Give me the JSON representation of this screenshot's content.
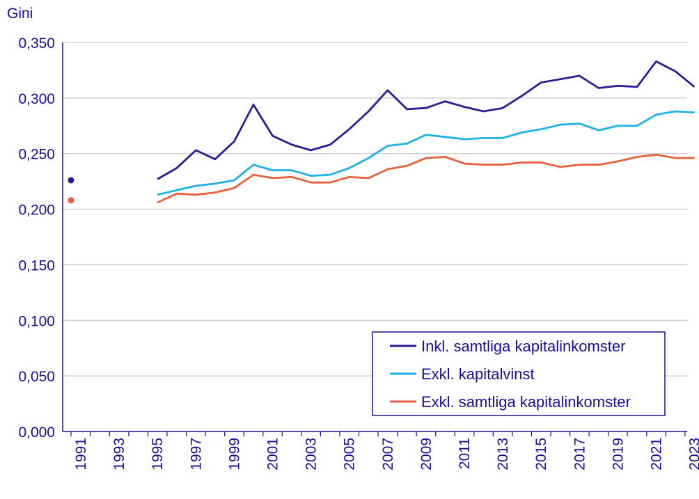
{
  "chart_data": {
    "type": "line",
    "title": "",
    "ylabel": "Gini",
    "xlabel": "",
    "ylim": [
      0,
      0.35
    ],
    "xlim": [
      1991,
      2023
    ],
    "yticks": [
      "0,000",
      "0,050",
      "0,100",
      "0,150",
      "0,200",
      "0,250",
      "0,300",
      "0,350"
    ],
    "ytick_values": [
      0,
      0.05,
      0.1,
      0.15,
      0.2,
      0.25,
      0.3,
      0.35
    ],
    "xticks": [
      "1991",
      "1993",
      "1995",
      "1997",
      "1999",
      "2001",
      "2003",
      "2005",
      "2007",
      "2009",
      "2011",
      "2013",
      "2015",
      "2017",
      "2019",
      "2021",
      "2023"
    ],
    "xtick_values": [
      1991,
      1993,
      1995,
      1997,
      1999,
      2001,
      2003,
      2005,
      2007,
      2009,
      2011,
      2013,
      2015,
      2017,
      2019,
      2021,
      2023
    ],
    "x": [
      1995,
      1996,
      1997,
      1998,
      1999,
      2000,
      2001,
      2002,
      2003,
      2004,
      2005,
      2006,
      2007,
      2008,
      2009,
      2010,
      2011,
      2012,
      2013,
      2014,
      2015,
      2016,
      2017,
      2018,
      2019,
      2020,
      2021,
      2022,
      2023
    ],
    "series": [
      {
        "name": "Inkl. samtliga kapitalinkomster",
        "color": "#2d1a99",
        "point_1991": 0.226,
        "values": [
          0.227,
          0.237,
          0.253,
          0.245,
          0.261,
          0.294,
          0.266,
          0.258,
          0.253,
          0.258,
          0.272,
          0.288,
          0.307,
          0.29,
          0.291,
          0.297,
          0.292,
          0.288,
          0.291,
          0.302,
          0.314,
          0.317,
          0.32,
          0.309,
          0.311,
          0.31,
          0.333,
          0.324,
          0.31
        ]
      },
      {
        "name": "Exkl. kapitalvinst",
        "color": "#1eb1e6",
        "values": [
          0.213,
          0.217,
          0.221,
          0.223,
          0.226,
          0.24,
          0.235,
          0.235,
          0.23,
          0.231,
          0.237,
          0.246,
          0.257,
          0.259,
          0.267,
          0.265,
          0.263,
          0.264,
          0.264,
          0.269,
          0.272,
          0.276,
          0.277,
          0.271,
          0.275,
          0.275,
          0.285,
          0.288,
          0.287
        ]
      },
      {
        "name": "Exkl. samtliga kapitalinkomster",
        "color": "#e8603c",
        "point_1991": 0.208,
        "values": [
          0.206,
          0.214,
          0.213,
          0.215,
          0.219,
          0.231,
          0.228,
          0.229,
          0.224,
          0.224,
          0.229,
          0.228,
          0.236,
          0.239,
          0.246,
          0.247,
          0.241,
          0.24,
          0.24,
          0.242,
          0.242,
          0.238,
          0.24,
          0.24,
          0.243,
          0.247,
          0.249,
          0.246,
          0.246
        ]
      }
    ],
    "legend_position": "bottom-right",
    "grid": true
  },
  "colors": {
    "axis_text": "#1a0d99",
    "grid": "#c6c6d6",
    "axis": "#1a0d99",
    "legend_border": "#1a0d99"
  }
}
